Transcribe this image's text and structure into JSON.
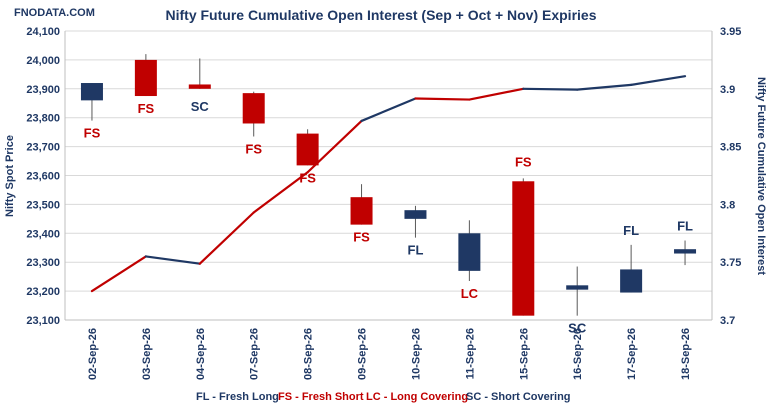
{
  "chart_data": {
    "type": "candlestick-with-line",
    "source_label": "FNODATA.COM",
    "title": "Nifty Future Cumulative Open Interest (Sep + Oct + Nov) Expiries",
    "ylabel_left": "Nifty Spot Price",
    "ylabel_right": "Nifty Future Cumulative Open Interest",
    "categories": [
      "02-Sep-26",
      "03-Sep-26",
      "04-Sep-26",
      "07-Sep-26",
      "08-Sep-26",
      "09-Sep-26",
      "10-Sep-26",
      "11-Sep-26",
      "15-Sep-26",
      "16-Sep-26",
      "17-Sep-26",
      "18-Sep-26"
    ],
    "y_left": {
      "min": 23100,
      "max": 24100,
      "step": 100,
      "ticks": [
        "23,100",
        "23,200",
        "23,300",
        "23,400",
        "23,500",
        "23,600",
        "23,700",
        "23,800",
        "23,900",
        "24,000",
        "24,100"
      ]
    },
    "y_right": {
      "min": 3.7,
      "max": 3.95,
      "ticks": [
        {
          "value": 3.7,
          "label": "3.7"
        },
        {
          "value": 3.75,
          "label": "3.75"
        },
        {
          "value": 3.8,
          "label": "3.8"
        },
        {
          "value": 3.85,
          "label": "3.85"
        },
        {
          "value": 3.9,
          "label": "3.9"
        },
        {
          "value": 3.95,
          "label": "3.95"
        }
      ]
    },
    "candles": [
      {
        "date": "02-Sep-26",
        "open": 23860,
        "close": 23920,
        "high": 23920,
        "low": 23790,
        "label": "FS"
      },
      {
        "date": "03-Sep-26",
        "open": 24000,
        "close": 23875,
        "high": 24020,
        "low": 23875,
        "label": "FS"
      },
      {
        "date": "04-Sep-26",
        "open": 23915,
        "close": 23900,
        "high": 24005,
        "low": 23900,
        "label": "SC"
      },
      {
        "date": "07-Sep-26",
        "open": 23885,
        "close": 23780,
        "high": 23890,
        "low": 23735,
        "label": "FS"
      },
      {
        "date": "08-Sep-26",
        "open": 23745,
        "close": 23635,
        "high": 23760,
        "low": 23635,
        "label": "FS"
      },
      {
        "date": "09-Sep-26",
        "open": 23525,
        "close": 23430,
        "high": 23570,
        "low": 23430,
        "label": "FS"
      },
      {
        "date": "10-Sep-26",
        "open": 23450,
        "close": 23480,
        "high": 23495,
        "low": 23385,
        "label": "FL"
      },
      {
        "date": "11-Sep-26",
        "open": 23270,
        "close": 23400,
        "high": 23445,
        "low": 23235,
        "label": "LC"
      },
      {
        "date": "15-Sep-26",
        "open": 23580,
        "close": 23115,
        "high": 23590,
        "low": 23115,
        "label": "FS"
      },
      {
        "date": "16-Sep-26",
        "open": 23205,
        "close": 23220,
        "high": 23285,
        "low": 23115,
        "label": "SC"
      },
      {
        "date": "17-Sep-26",
        "open": 23195,
        "close": 23275,
        "high": 23360,
        "low": 23195,
        "label": "FL"
      },
      {
        "date": "18-Sep-26",
        "open": 23330,
        "close": 23345,
        "high": 23375,
        "low": 23290,
        "label": "FL"
      }
    ],
    "open_interest": {
      "values": [
        3.725,
        3.755,
        3.7487,
        3.793,
        3.8278,
        3.8722,
        3.8916,
        3.8907,
        3.9,
        3.8993,
        3.9034,
        3.9109
      ],
      "segment_colors": [
        "#c00000",
        "#1f3864",
        "#c00000",
        "#c00000",
        "#c00000",
        "#1f3864",
        "#c00000",
        "#c00000",
        "#1f3864",
        "#1f3864",
        "#1f3864"
      ]
    },
    "colors": {
      "up": "#1f3864",
      "down": "#c00000",
      "axis_text": "#1f3864",
      "grid": "#d9d9d9"
    },
    "label_colors": {
      "FS": "#c00000",
      "LC": "#c00000",
      "SC": "#1f3864",
      "FL": "#1f3864"
    },
    "legend": [
      {
        "text": "FL - Fresh Long",
        "color": "#1f3864"
      },
      {
        "text": "FS - Fresh Short",
        "color": "#c00000"
      },
      {
        "text": "LC - Long Covering",
        "color": "#c00000"
      },
      {
        "text": "SC - Short Covering",
        "color": "#1f3864"
      }
    ],
    "grid": true
  }
}
